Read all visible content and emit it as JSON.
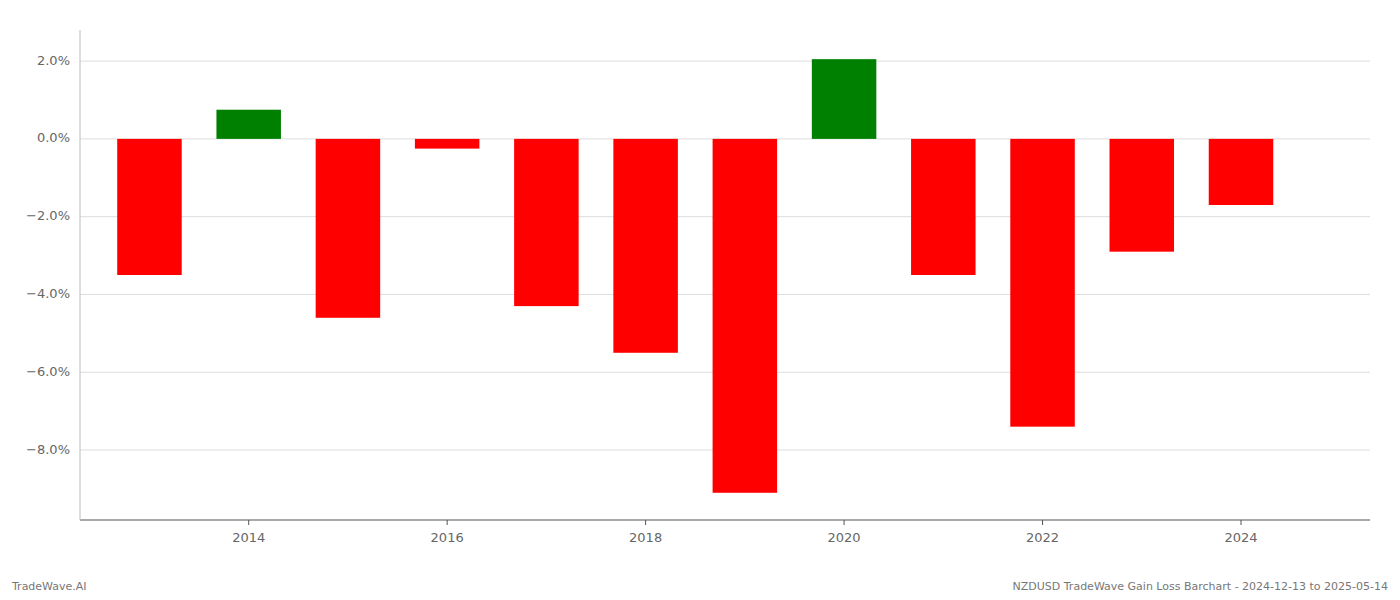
{
  "chart_data": {
    "type": "bar",
    "x": [
      2013,
      2014,
      2015,
      2016,
      2017,
      2018,
      2019,
      2020,
      2021,
      2022,
      2023,
      2024
    ],
    "values": [
      -3.5,
      0.75,
      -4.6,
      -0.25,
      -4.3,
      -5.5,
      -9.1,
      2.05,
      -3.5,
      -7.4,
      -2.9,
      -1.7
    ],
    "colors": [
      "#ff0000",
      "#008000",
      "#ff0000",
      "#ff0000",
      "#ff0000",
      "#ff0000",
      "#ff0000",
      "#008000",
      "#ff0000",
      "#ff0000",
      "#ff0000",
      "#ff0000"
    ],
    "ylim": [
      -9.8,
      2.8
    ],
    "yticks": [
      {
        "value": 2.0,
        "label": "2.0%"
      },
      {
        "value": 0.0,
        "label": "0.0%"
      },
      {
        "value": -2.0,
        "label": "−2.0%"
      },
      {
        "value": -4.0,
        "label": "−4.0%"
      },
      {
        "value": -6.0,
        "label": "−6.0%"
      },
      {
        "value": -8.0,
        "label": "−8.0%"
      }
    ],
    "xlim": [
      2012.3,
      2025.3
    ],
    "xticks": [
      2014,
      2016,
      2018,
      2020,
      2022,
      2024
    ],
    "grid": true,
    "annotations": [
      "TradeWave.AI",
      "NZDUSD TradeWave Gain Loss Barchart - 2024-12-13 to 2025-05-14"
    ]
  }
}
